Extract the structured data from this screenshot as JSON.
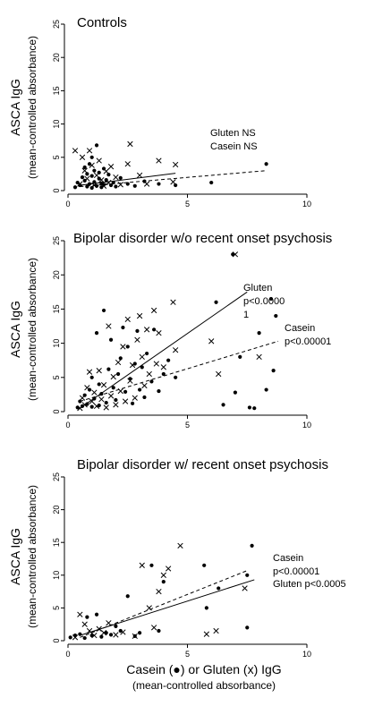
{
  "shared": {
    "ylabel": "ASCA IgG",
    "ylabel_sub": "(mean-controlled absorbance)",
    "xlabel": "Casein (●) or Gluten (x) IgG",
    "xlabel_sub": "(mean-controlled absorbance)"
  },
  "chart_data": [
    {
      "type": "scatter",
      "title": "Controls",
      "xlim": [
        0,
        10
      ],
      "ylim": [
        0,
        25
      ],
      "x_ticks": [
        "0",
        "5",
        "10"
      ],
      "y_ticks": [
        "0",
        "5",
        "10",
        "15",
        "20",
        "25"
      ],
      "annotations": [
        "Gluten NS",
        "Casein NS"
      ],
      "series": [
        {
          "marker": "circle",
          "points": [
            [
              0.3,
              0.5
            ],
            [
              0.4,
              1.2
            ],
            [
              0.5,
              0.8
            ],
            [
              0.6,
              2.0
            ],
            [
              0.7,
              1.5
            ],
            [
              0.7,
              3.5
            ],
            [
              0.8,
              0.6
            ],
            [
              0.8,
              2.5
            ],
            [
              0.9,
              1.0
            ],
            [
              0.9,
              4.0
            ],
            [
              1.0,
              0.4
            ],
            [
              1.0,
              2.2
            ],
            [
              1.0,
              5.0
            ],
            [
              1.1,
              1.3
            ],
            [
              1.1,
              3.0
            ],
            [
              1.2,
              0.7
            ],
            [
              1.2,
              6.8
            ],
            [
              1.3,
              1.8
            ],
            [
              1.3,
              2.7
            ],
            [
              1.4,
              0.5
            ],
            [
              1.4,
              1.1
            ],
            [
              1.5,
              3.3
            ],
            [
              1.5,
              0.9
            ],
            [
              1.6,
              1.6
            ],
            [
              1.7,
              2.4
            ],
            [
              1.8,
              0.8
            ],
            [
              1.9,
              1.2
            ],
            [
              2.0,
              0.6
            ],
            [
              2.2,
              1.9
            ],
            [
              2.5,
              1.0
            ],
            [
              2.8,
              0.7
            ],
            [
              3.2,
              1.4
            ],
            [
              3.8,
              1.0
            ],
            [
              4.5,
              0.8
            ],
            [
              6.0,
              1.2
            ],
            [
              8.3,
              4.0
            ]
          ]
        },
        {
          "marker": "cross",
          "points": [
            [
              0.3,
              6.0
            ],
            [
              0.5,
              1.0
            ],
            [
              0.6,
              5.0
            ],
            [
              0.7,
              3.0
            ],
            [
              0.8,
              1.8
            ],
            [
              0.9,
              6.0
            ],
            [
              1.0,
              3.8
            ],
            [
              1.1,
              0.8
            ],
            [
              1.2,
              2.3
            ],
            [
              1.3,
              4.5
            ],
            [
              1.4,
              1.6
            ],
            [
              1.5,
              0.7
            ],
            [
              1.6,
              2.9
            ],
            [
              1.7,
              1.2
            ],
            [
              1.8,
              3.6
            ],
            [
              2.0,
              2.0
            ],
            [
              2.2,
              0.9
            ],
            [
              2.5,
              4.0
            ],
            [
              2.6,
              7.0
            ],
            [
              3.0,
              2.3
            ],
            [
              3.3,
              1.0
            ],
            [
              3.8,
              4.5
            ],
            [
              4.4,
              1.3
            ],
            [
              4.5,
              3.9
            ]
          ]
        }
      ],
      "fit_lines": [
        {
          "style": "solid",
          "from": [
            0.5,
            0.8
          ],
          "to": [
            4.5,
            2.6
          ]
        },
        {
          "style": "dashed",
          "from": [
            0.5,
            0.6
          ],
          "to": [
            8.3,
            3.0
          ]
        }
      ]
    },
    {
      "type": "scatter",
      "title": "Bipolar disorder w/o recent onset psychosis",
      "xlim": [
        0,
        10
      ],
      "ylim": [
        0,
        25
      ],
      "x_ticks": [
        "0",
        "5",
        "10"
      ],
      "y_ticks": [
        "0",
        "5",
        "10",
        "15",
        "20",
        "25"
      ],
      "annotations": [
        "Gluten",
        "p<0.0000",
        "1",
        "Casein",
        "p<0.00001"
      ],
      "series": [
        {
          "marker": "circle",
          "points": [
            [
              0.4,
              0.6
            ],
            [
              0.5,
              1.5
            ],
            [
              0.6,
              0.8
            ],
            [
              0.7,
              2.4
            ],
            [
              0.8,
              1.1
            ],
            [
              0.9,
              3.2
            ],
            [
              1.0,
              0.7
            ],
            [
              1.0,
              5.0
            ],
            [
              1.1,
              1.9
            ],
            [
              1.2,
              11.5
            ],
            [
              1.3,
              0.9
            ],
            [
              1.3,
              4.0
            ],
            [
              1.4,
              2.6
            ],
            [
              1.5,
              14.8
            ],
            [
              1.6,
              1.3
            ],
            [
              1.7,
              6.2
            ],
            [
              1.8,
              10.5
            ],
            [
              1.9,
              3.5
            ],
            [
              2.0,
              1.7
            ],
            [
              2.1,
              5.5
            ],
            [
              2.2,
              7.8
            ],
            [
              2.3,
              12.3
            ],
            [
              2.4,
              2.9
            ],
            [
              2.5,
              9.5
            ],
            [
              2.6,
              4.8
            ],
            [
              2.7,
              1.2
            ],
            [
              2.8,
              7.0
            ],
            [
              2.9,
              11.8
            ],
            [
              3.0,
              3.2
            ],
            [
              3.1,
              6.5
            ],
            [
              3.2,
              2.1
            ],
            [
              3.3,
              8.5
            ],
            [
              3.5,
              4.4
            ],
            [
              3.6,
              12.0
            ],
            [
              3.8,
              3.0
            ],
            [
              4.0,
              5.5
            ],
            [
              4.2,
              7.5
            ],
            [
              4.5,
              5.0
            ],
            [
              6.2,
              16.0
            ],
            [
              6.5,
              1.0
            ],
            [
              6.9,
              23.0
            ],
            [
              7.0,
              2.8
            ],
            [
              7.2,
              8.0
            ],
            [
              7.6,
              0.6
            ],
            [
              7.8,
              0.5
            ],
            [
              8.0,
              11.5
            ],
            [
              8.3,
              3.2
            ],
            [
              8.5,
              16.5
            ],
            [
              8.6,
              6.0
            ],
            [
              8.7,
              14.0
            ]
          ]
        },
        {
          "marker": "cross",
          "points": [
            [
              0.5,
              0.5
            ],
            [
              0.6,
              2.0
            ],
            [
              0.7,
              1.0
            ],
            [
              0.8,
              3.5
            ],
            [
              0.9,
              5.8
            ],
            [
              1.0,
              1.5
            ],
            [
              1.1,
              2.8
            ],
            [
              1.2,
              0.8
            ],
            [
              1.3,
              6.0
            ],
            [
              1.4,
              1.8
            ],
            [
              1.5,
              3.9
            ],
            [
              1.6,
              0.6
            ],
            [
              1.7,
              12.5
            ],
            [
              1.8,
              2.3
            ],
            [
              1.9,
              5.1
            ],
            [
              2.0,
              1.0
            ],
            [
              2.1,
              7.2
            ],
            [
              2.2,
              3.0
            ],
            [
              2.3,
              9.5
            ],
            [
              2.4,
              1.5
            ],
            [
              2.5,
              13.5
            ],
            [
              2.6,
              4.5
            ],
            [
              2.7,
              6.8
            ],
            [
              2.8,
              2.0
            ],
            [
              2.9,
              10.5
            ],
            [
              3.0,
              14.0
            ],
            [
              3.1,
              8.0
            ],
            [
              3.2,
              3.8
            ],
            [
              3.3,
              12.0
            ],
            [
              3.4,
              5.5
            ],
            [
              3.6,
              14.8
            ],
            [
              3.7,
              7.0
            ],
            [
              3.8,
              11.5
            ],
            [
              4.0,
              6.5
            ],
            [
              4.4,
              16.0
            ],
            [
              4.5,
              9.0
            ],
            [
              6.0,
              10.3
            ],
            [
              6.3,
              5.5
            ],
            [
              7.0,
              23.0
            ],
            [
              8.0,
              8.0
            ]
          ]
        }
      ],
      "fit_lines": [
        {
          "style": "solid",
          "from": [
            0.5,
            0.5
          ],
          "to": [
            7.5,
            17.5
          ]
        },
        {
          "style": "dashed",
          "from": [
            0.5,
            1.5
          ],
          "to": [
            8.8,
            10.3
          ]
        }
      ]
    },
    {
      "type": "scatter",
      "title": "Bipolar disorder w/ recent onset psychosis",
      "xlim": [
        0,
        10
      ],
      "ylim": [
        0,
        25
      ],
      "x_ticks": [
        "0",
        "5",
        "10"
      ],
      "y_ticks": [
        "0",
        "5",
        "10",
        "15",
        "20",
        "25"
      ],
      "annotations": [
        "Casein",
        "p<0.00001",
        "Gluten p<0.0005"
      ],
      "series": [
        {
          "marker": "circle",
          "points": [
            [
              0.1,
              0.5
            ],
            [
              0.3,
              0.8
            ],
            [
              0.5,
              1.0
            ],
            [
              0.7,
              0.4
            ],
            [
              0.8,
              3.6
            ],
            [
              1.0,
              0.8
            ],
            [
              1.2,
              4.0
            ],
            [
              1.4,
              0.6
            ],
            [
              1.6,
              1.2
            ],
            [
              1.8,
              0.9
            ],
            [
              2.0,
              2.2
            ],
            [
              2.2,
              1.5
            ],
            [
              2.5,
              6.8
            ],
            [
              2.8,
              0.7
            ],
            [
              3.0,
              1.2
            ],
            [
              3.5,
              11.5
            ],
            [
              3.8,
              1.5
            ],
            [
              4.0,
              9.0
            ],
            [
              5.7,
              11.5
            ],
            [
              5.8,
              5.0
            ],
            [
              6.3,
              8.0
            ],
            [
              7.5,
              2.0
            ],
            [
              7.5,
              10.0
            ],
            [
              7.7,
              14.5
            ]
          ]
        },
        {
          "marker": "cross",
          "points": [
            [
              0.3,
              0.5
            ],
            [
              0.5,
              4.0
            ],
            [
              0.7,
              2.5
            ],
            [
              0.9,
              1.5
            ],
            [
              1.1,
              0.8
            ],
            [
              1.3,
              1.8
            ],
            [
              1.5,
              1.2
            ],
            [
              1.7,
              2.7
            ],
            [
              2.0,
              0.9
            ],
            [
              2.3,
              1.3
            ],
            [
              2.8,
              0.7
            ],
            [
              3.1,
              11.5
            ],
            [
              3.4,
              5.0
            ],
            [
              3.6,
              2.0
            ],
            [
              3.8,
              7.5
            ],
            [
              4.0,
              10.0
            ],
            [
              4.2,
              11.0
            ],
            [
              4.7,
              14.5
            ],
            [
              5.8,
              1.0
            ],
            [
              6.2,
              1.5
            ],
            [
              7.4,
              8.0
            ]
          ]
        }
      ],
      "fit_lines": [
        {
          "style": "solid",
          "from": [
            0.5,
            0.8
          ],
          "to": [
            7.8,
            9.3
          ]
        },
        {
          "style": "dashed",
          "from": [
            0.5,
            0.5
          ],
          "to": [
            7.5,
            10.7
          ]
        }
      ]
    }
  ]
}
